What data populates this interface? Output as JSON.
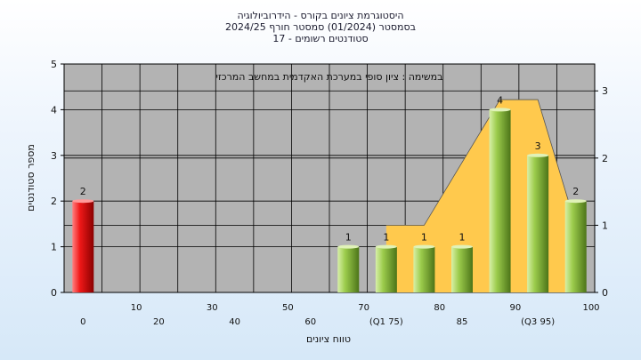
{
  "chart_data": {
    "type": "bar",
    "title_lines": [
      "היסטוגרמת ציונים בקורס - הידרוביולוגיה",
      "בסמסטר  (01/2024)  סמסטר חורף 2024/25",
      "סטודנטים רשומים - 17"
    ],
    "annotation": "במשימה : ציון סופי במערכת האקדמית במחשב המרכזי",
    "xlabel": "טווח ציונים",
    "ylabel": "מספר סטודנטים",
    "ylim": [
      0,
      5
    ],
    "y2lim": [
      0,
      3.4
    ],
    "yticks": [
      "0",
      "1",
      "2",
      "3",
      "4",
      "5"
    ],
    "y2ticks": [
      "0",
      "1",
      "2",
      "3"
    ],
    "categories": [
      "0",
      "10",
      "20",
      "30",
      "40",
      "50",
      "60",
      "70",
      "75",
      "80",
      "85",
      "90",
      "95",
      "100"
    ],
    "category_labels": [
      "0",
      "10",
      "20",
      "30",
      "40",
      "50",
      "60",
      "70",
      "(Q1 75)",
      "80",
      "85",
      "90",
      "(Q3 95)",
      "100"
    ],
    "values": [
      2,
      0,
      0,
      0,
      0,
      0,
      0,
      1,
      1,
      1,
      1,
      4,
      3,
      2
    ],
    "data_labels": [
      "2",
      "",
      "",
      "",
      "",
      "",
      "",
      "1",
      "1",
      "1",
      "1",
      "4",
      "3",
      "2"
    ],
    "bar_colors": [
      "#e02020",
      "",
      "",
      "",
      "",
      "",
      "",
      "#8cc43c",
      "#8cc43c",
      "#8cc43c",
      "#8cc43c",
      "#8cc43c",
      "#8cc43c",
      "#8cc43c"
    ],
    "area_series": {
      "color": "#ffc94d",
      "points": [
        [
          "75",
          1
        ],
        [
          "80",
          1
        ],
        [
          "90",
          2.87
        ],
        [
          "95",
          2.87
        ],
        [
          "100",
          1
        ]
      ]
    },
    "grid": true,
    "colors": {
      "plot_bg": "#b3b3b3",
      "grid": "#000000",
      "red_bar": "#e02020",
      "green_bar": "#8cc43c",
      "area": "#ffc94d"
    }
  }
}
